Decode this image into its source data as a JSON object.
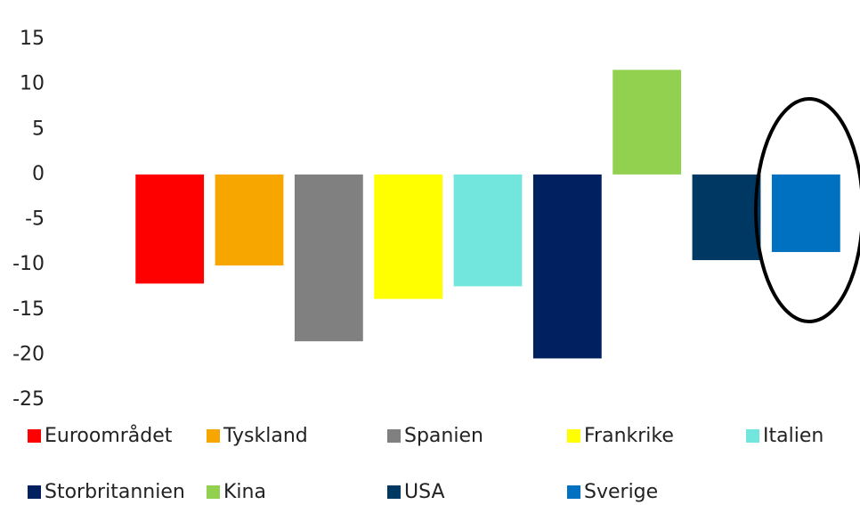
{
  "chart_data": {
    "type": "bar",
    "categories": [
      "Euroområdet",
      "Tyskland",
      "Spanien",
      "Frankrike",
      "Italien",
      "Storbritannien",
      "Kina",
      "USA",
      "Sverige"
    ],
    "values": [
      -12.1,
      -10.1,
      -18.5,
      -13.8,
      -12.4,
      -20.4,
      11.6,
      -9.5,
      -8.6
    ],
    "colors": [
      "#ff0000",
      "#f7a600",
      "#808080",
      "#ffff00",
      "#72e5dc",
      "#002060",
      "#92d050",
      "#003864",
      "#0070c0"
    ],
    "ylim": [
      -25,
      15
    ],
    "yticks": [
      -25,
      -20,
      -15,
      -10,
      -5,
      0,
      5,
      10,
      15
    ],
    "grid": false
  }
}
